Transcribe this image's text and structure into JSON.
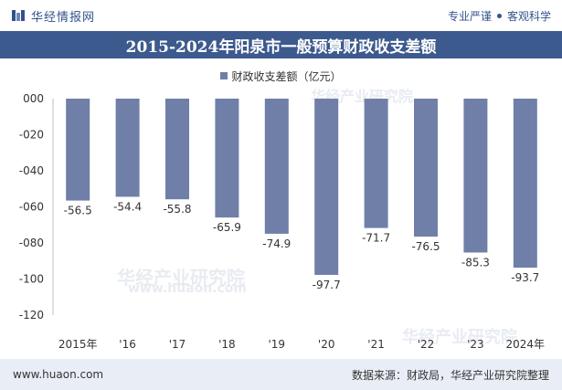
{
  "header": {
    "brand": "华经情报网",
    "tagline_left": "专业严谨",
    "tagline_right": "客观科学"
  },
  "title": "2015-2024年阳泉市一般预算财政收支差额",
  "colors": {
    "bar": "#6f7fa8",
    "title_bg": "#3d5a8e",
    "footer_bg": "#e9eef6"
  },
  "chart_data": {
    "type": "bar",
    "categories": [
      "2015年",
      "'16",
      "'17",
      "'18",
      "'19",
      "'20",
      "'21",
      "'22",
      "'23",
      "2024年"
    ],
    "series": [
      {
        "name": "财政收支差额（亿元）",
        "values": [
          -56.5,
          -54.4,
          -55.8,
          -65.9,
          -74.9,
          -97.7,
          -71.7,
          -76.5,
          -85.3,
          -93.7
        ]
      }
    ],
    "value_labels": [
      "-56.5",
      "-54.4",
      "-55.8",
      "-65.9",
      "-74.9",
      "-97.7",
      "-71.7",
      "-76.5",
      "-85.3",
      "-93.7"
    ],
    "ylim": [
      -120,
      0
    ],
    "yticks": [
      0,
      -20,
      -40,
      -60,
      -80,
      -100,
      -120
    ],
    "ytick_labels": [
      "000",
      "-020",
      "-040",
      "-060",
      "-080",
      "-100",
      "-120"
    ],
    "grid": false,
    "legend_position": "top-center"
  },
  "watermarks": [
    "华经产业研究院",
    "华经产业研究院",
    "华经产业研究院",
    "www.huaon.com"
  ],
  "footer": {
    "url": "www.huaon.com",
    "source": "数据来源：财政局，华经产业研究院整理"
  }
}
